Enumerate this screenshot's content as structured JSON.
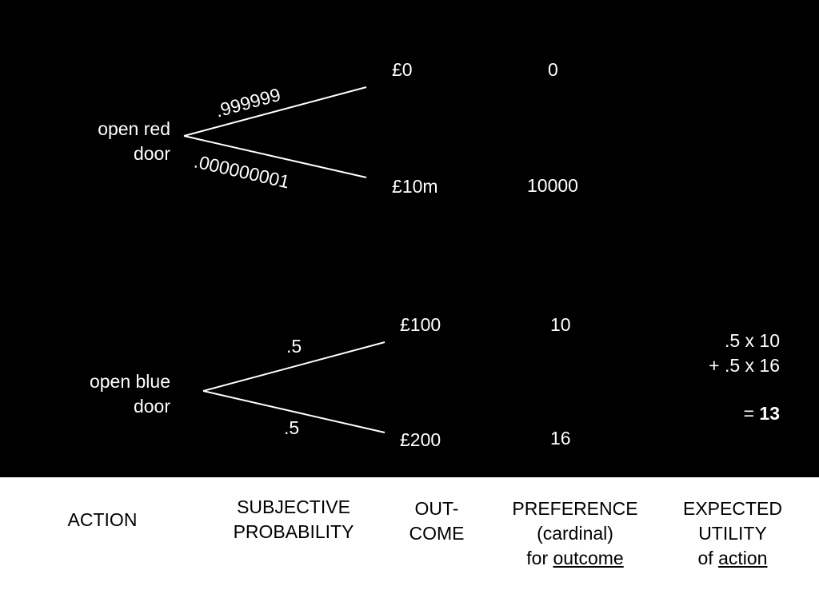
{
  "colors": {
    "diagram_background": "#000000",
    "diagram_text": "#ffffff",
    "legend_background": "#ffffff",
    "legend_text": "#000000"
  },
  "tree_top": {
    "action_line1": "open red",
    "action_line2": "door",
    "prob_upper": ".999999",
    "prob_lower": ".000000001",
    "outcome_upper": "£0",
    "outcome_lower": "£10m",
    "preference_upper": "0",
    "preference_lower": "10000"
  },
  "tree_bottom": {
    "action_line1": "open blue",
    "action_line2": "door",
    "prob_upper": ".5",
    "prob_lower": ".5",
    "outcome_upper": "£100",
    "outcome_lower": "£200",
    "preference_upper": "10",
    "preference_lower": "16",
    "eu_line1": ".5 x 10",
    "eu_line2": "+ .5 x 16",
    "eu_prefix": "= ",
    "eu_result": "13"
  },
  "legend": {
    "action": "ACTION",
    "probability_line1": "SUBJECTIVE",
    "probability_line2": "PROBABILITY",
    "outcome_line1": "OUT-",
    "outcome_line2": "COME",
    "preference_line1": "PREFERENCE",
    "preference_line2": "(cardinal)",
    "preference_line3_prefix": "for ",
    "preference_line3_underlined": "outcome",
    "utility_line1": "EXPECTED",
    "utility_line2": "UTILITY",
    "utility_line3_prefix": "of ",
    "utility_line3_underlined": "action"
  }
}
